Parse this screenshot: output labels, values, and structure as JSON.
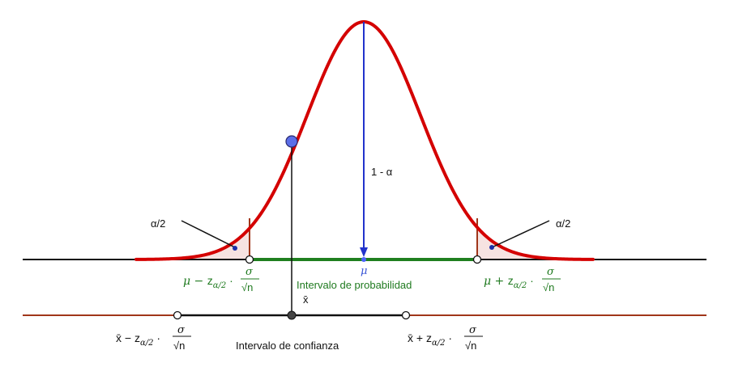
{
  "colors": {
    "curve": "#d40000",
    "probability_interval": "#1f7f1f",
    "confidence_axis": "#a0361a",
    "mean_arrow": "#2233cc",
    "tail_fill": "#f6e3e1",
    "point": "#5b6ee8"
  },
  "labels": {
    "alpha_half_left": "α/2",
    "alpha_half_right": "α/2",
    "one_minus_alpha": "1 - α",
    "mu": "μ",
    "probability_interval": "Intervalo de probabilidad",
    "confidence_interval": "Intervalo de confianza",
    "xbar": "x̄"
  },
  "formulas": {
    "lower_prob": {
      "lead": "μ − ",
      "z": "z",
      "sub": "α/2",
      "dot": " · ",
      "num": "σ",
      "root": "√n"
    },
    "upper_prob": {
      "lead": "μ + ",
      "z": "z",
      "sub": "α/2",
      "dot": " · ",
      "num": "σ",
      "root": "√n"
    },
    "lower_conf": {
      "lead": "x̄ − ",
      "z": "z",
      "sub": "α/2",
      "dot": " · ",
      "num": "σ",
      "root": "√n"
    },
    "upper_conf": {
      "lead": "x̄ + ",
      "z": "z",
      "sub": "α/2",
      "dot": " · ",
      "num": "σ",
      "root": "√n"
    }
  }
}
